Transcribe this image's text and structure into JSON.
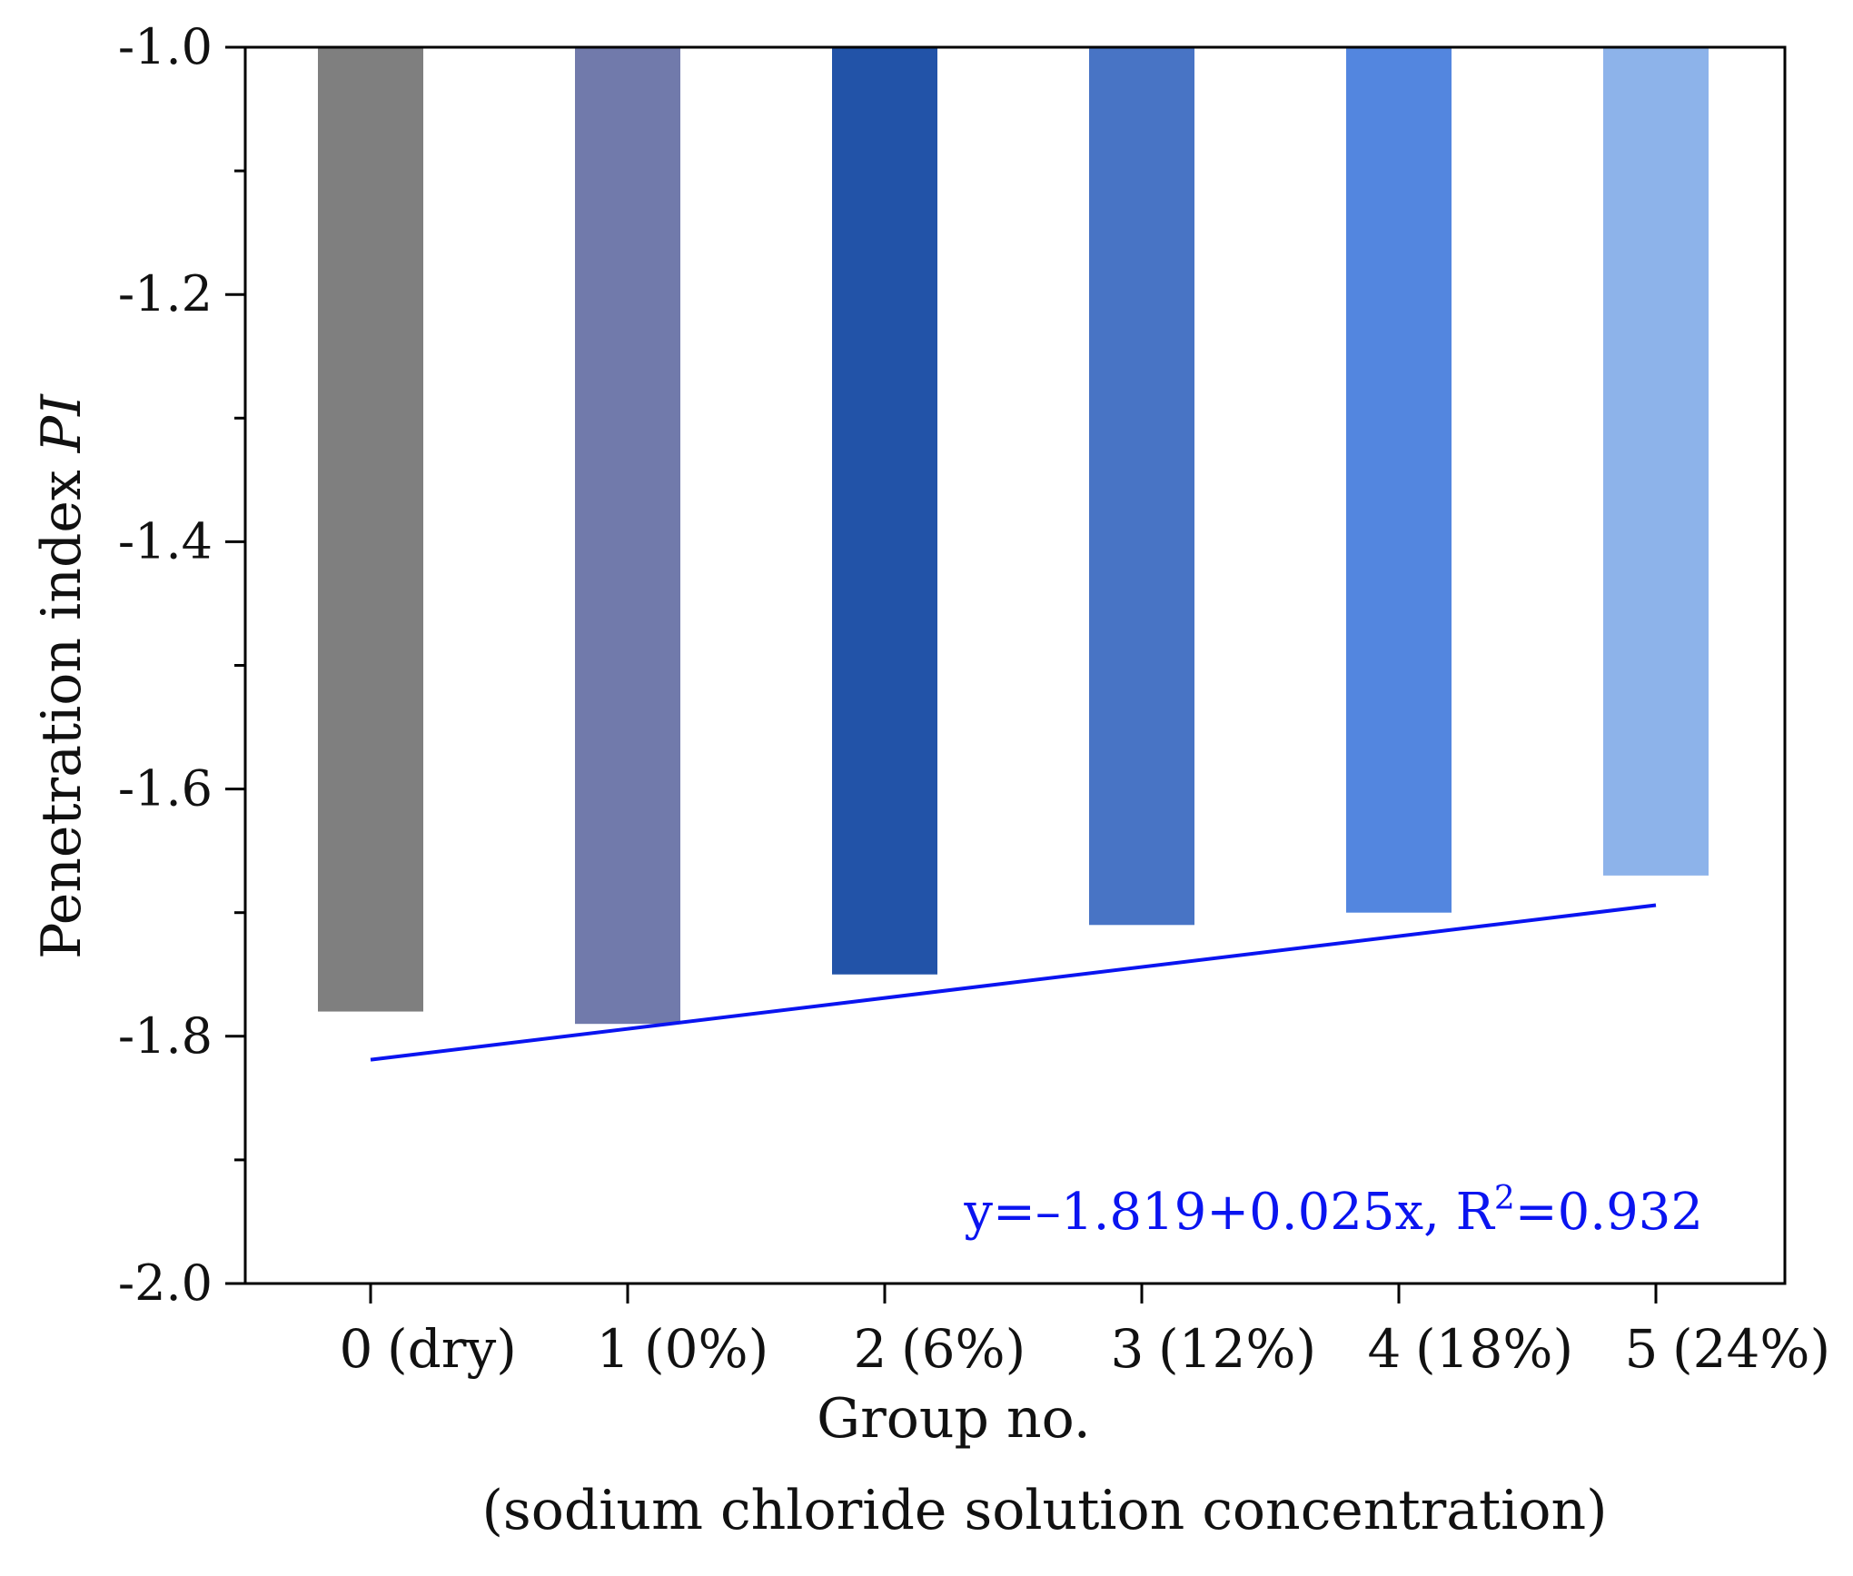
{
  "chart_data": {
    "type": "bar",
    "title": "",
    "xlabel": "Group no.",
    "xlabel_sub": "(sodium chloride solution concentration)",
    "ylabel": "Penetration index",
    "ylabel_italic": "PI",
    "ylim": [
      -2.0,
      -1.0
    ],
    "baseline": -1.0,
    "yticks": [
      -1.0,
      -1.2,
      -1.4,
      -1.6,
      -1.8,
      -2.0
    ],
    "ytick_labels": [
      "-1.0",
      "-1.2",
      "-1.4",
      "-1.6",
      "-1.8",
      "-2.0"
    ],
    "minor_step": 0.1,
    "x": [
      0,
      1,
      2,
      3,
      4,
      5
    ],
    "categories": [
      "0 (dry)",
      "1 (0%)",
      "2 (6%)",
      "3 (12%)",
      "4 (18%)",
      "5 (24%)"
    ],
    "category_parts": [
      {
        "num": "0",
        "desc": "(dry)"
      },
      {
        "num": "1",
        "desc": "(0%)"
      },
      {
        "num": "2",
        "desc": "(6%)"
      },
      {
        "num": "3",
        "desc": "(12%)"
      },
      {
        "num": "4",
        "desc": "(18%)"
      },
      {
        "num": "5",
        "desc": "(24%)"
      }
    ],
    "values": [
      -1.78,
      -1.79,
      -1.75,
      -1.71,
      -1.7,
      -1.67
    ],
    "bar_colors": [
      "#7f7f7f",
      "#717aab",
      "#2253a8",
      "#4874c5",
      "#5386df",
      "#8db3ea"
    ],
    "fit": {
      "intercept": -1.819,
      "slope": 0.025,
      "x_range": [
        0,
        5
      ],
      "color": "#0a14f0",
      "text_prefix": "y=–1.819+0.025x, R",
      "text_sup": "2",
      "text_suffix": "=0.932"
    },
    "grid": false,
    "legend": "none"
  }
}
